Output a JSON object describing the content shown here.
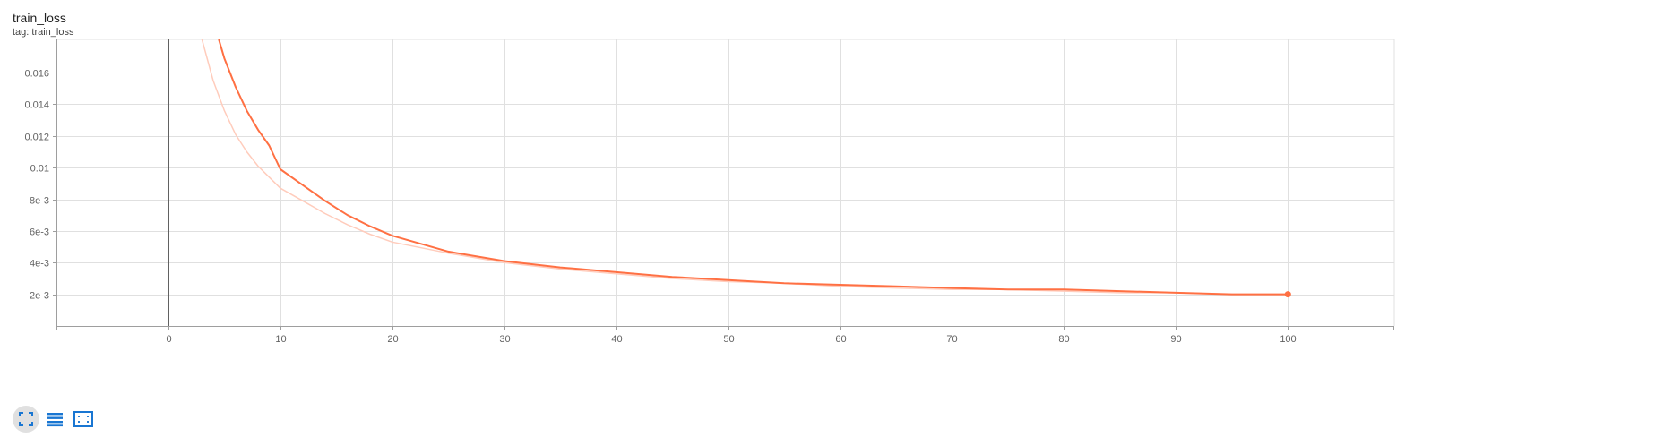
{
  "card": {
    "title": "train_loss",
    "tag": "tag: train_loss"
  },
  "toolbar": {
    "icons": [
      "fullscreen-icon",
      "data-table-icon",
      "fit-domain-icon"
    ]
  },
  "colors": {
    "series": "#ff7043",
    "series_raw": "#ffccbc",
    "grid": "#e0e0e0",
    "zero_axis": "#616161",
    "icon": "#1976d2"
  },
  "chart_data": {
    "type": "line",
    "title": "",
    "xlabel": "",
    "ylabel": "",
    "xlim": [
      -10,
      109.5
    ],
    "ylim": [
      0,
      0.0181
    ],
    "grid": true,
    "x_ticks": [
      0,
      10,
      20,
      30,
      40,
      50,
      60,
      70,
      80,
      90,
      100
    ],
    "x_tick_labels": [
      "0",
      "10",
      "20",
      "30",
      "40",
      "50",
      "60",
      "70",
      "80",
      "90",
      "100"
    ],
    "y_ticks": [
      0.002,
      0.004,
      0.006,
      0.008,
      0.01,
      0.012,
      0.014,
      0.016
    ],
    "y_tick_labels": [
      "2e-3",
      "4e-3",
      "6e-3",
      "8e-3",
      "0.01",
      "0.012",
      "0.014",
      "0.016"
    ],
    "series": [
      {
        "role": "smoothed",
        "x": [
          4.5,
          5,
          6,
          7,
          8,
          9,
          10,
          12,
          14,
          16,
          18,
          20,
          25,
          30,
          35,
          40,
          45,
          50,
          55,
          60,
          65,
          70,
          75,
          80,
          85,
          90,
          95,
          100
        ],
        "values": [
          0.0181,
          0.0169,
          0.0151,
          0.0136,
          0.0124,
          0.0114,
          0.0099,
          0.0089,
          0.0079,
          0.007,
          0.0063,
          0.0057,
          0.0047,
          0.0041,
          0.0037,
          0.0034,
          0.0031,
          0.0029,
          0.0027,
          0.0026,
          0.0025,
          0.0024,
          0.0023,
          0.0023,
          0.0022,
          0.0021,
          0.002,
          0.002
        ]
      },
      {
        "role": "raw",
        "x": [
          3,
          4,
          5,
          6,
          7,
          8,
          9,
          10,
          12,
          14,
          16,
          18,
          20,
          25,
          30,
          35,
          40,
          45,
          50,
          55,
          60,
          65,
          70,
          75,
          80,
          85,
          90,
          95,
          100
        ],
        "values": [
          0.0181,
          0.0155,
          0.0136,
          0.0121,
          0.011,
          0.0101,
          0.0094,
          0.0087,
          0.0079,
          0.0071,
          0.0064,
          0.0058,
          0.0053,
          0.0046,
          0.004,
          0.0036,
          0.0033,
          0.003,
          0.0028,
          0.0027,
          0.0025,
          0.0024,
          0.0023,
          0.0023,
          0.0022,
          0.0021,
          0.0021,
          0.002,
          0.002
        ]
      }
    ],
    "last_point": {
      "x": 100,
      "y": 0.002
    }
  }
}
